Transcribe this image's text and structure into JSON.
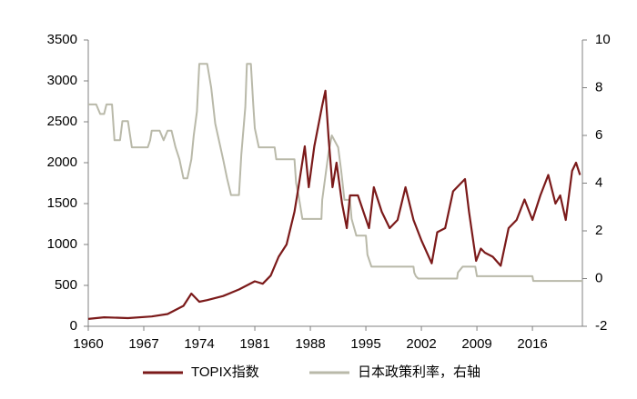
{
  "chart_data": {
    "type": "line",
    "legend": "bottom",
    "xlim": [
      1960,
      2022.3
    ],
    "xticks": [
      1960,
      1967,
      1974,
      1981,
      1988,
      1995,
      2002,
      2009,
      2016
    ],
    "ylim": [
      0,
      3500
    ],
    "yticks": [
      0,
      500,
      1000,
      1500,
      2000,
      2500,
      3000,
      3500
    ],
    "y2lim": [
      -2,
      10
    ],
    "y2ticks": [
      -2,
      0,
      2,
      4,
      6,
      8,
      10
    ],
    "series": [
      {
        "name": "TOPIX指数",
        "color": "#7b1a1a",
        "x": [
          1960,
          1962,
          1965,
          1968,
          1970,
          1972,
          1973,
          1974,
          1975,
          1977,
          1979,
          1981,
          1982,
          1983,
          1984,
          1985,
          1986,
          1986.5,
          1987.3,
          1987.8,
          1988.5,
          1989.5,
          1989.9,
          1990.3,
          1990.8,
          1991.3,
          1992,
          1992.6,
          1993,
          1994,
          1995.4,
          1996,
          1997,
          1998,
          1999,
          2000,
          2001,
          2002,
          2003.3,
          2004,
          2005,
          2006,
          2007,
          2007.5,
          2008,
          2008.9,
          2009.5,
          2010,
          2011,
          2012,
          2013,
          2014,
          2015,
          2016,
          2017,
          2018,
          2018.9,
          2019.5,
          2020.2,
          2021,
          2021.5,
          2022
        ],
        "values": [
          90,
          110,
          100,
          120,
          150,
          250,
          400,
          300,
          320,
          370,
          450,
          550,
          520,
          620,
          850,
          1000,
          1400,
          1700,
          2200,
          1700,
          2200,
          2700,
          2880,
          2300,
          1700,
          2000,
          1500,
          1200,
          1600,
          1600,
          1200,
          1700,
          1400,
          1200,
          1300,
          1700,
          1300,
          1050,
          770,
          1150,
          1200,
          1650,
          1750,
          1800,
          1400,
          800,
          950,
          900,
          850,
          740,
          1200,
          1300,
          1550,
          1300,
          1600,
          1850,
          1500,
          1600,
          1300,
          1900,
          2000,
          1850
        ]
      },
      {
        "name": "日本政策利率，右轴",
        "color": "#b9b9a9",
        "axis": "y2",
        "x": [
          1960,
          1961,
          1961.5,
          1962,
          1962.3,
          1963,
          1963.3,
          1964,
          1964.3,
          1965,
          1965.5,
          1967.5,
          1967.8,
          1968,
          1969,
          1969.5,
          1970,
          1970.5,
          1971,
          1971.5,
          1972,
          1972.5,
          1973,
          1973.3,
          1973.7,
          1974,
          1975,
          1975.5,
          1976,
          1977,
          1977.5,
          1978,
          1979,
          1979.3,
          1979.8,
          1980,
          1980.5,
          1980.8,
          1981,
          1981.5,
          1983.5,
          1983.7,
          1986,
          1986.2,
          1986.5,
          1987,
          1989.4,
          1989.5,
          1989.9,
          1990.3,
          1990.7,
          1991.5,
          1991.9,
          1992.3,
          1993,
          1993.2,
          1993.8,
          1995,
          1995.2,
          1995.7,
          2001,
          2001.1,
          2001.3,
          2001.6,
          2006.5,
          2006.6,
          2007.2,
          2008.8,
          2008.9,
          2009,
          2016,
          2016.1,
          2022.3
        ],
        "values": [
          7.3,
          7.3,
          6.9,
          6.9,
          7.3,
          7.3,
          5.8,
          5.8,
          6.6,
          6.6,
          5.5,
          5.5,
          5.8,
          6.2,
          6.2,
          5.8,
          6.2,
          6.2,
          5.5,
          5,
          4.2,
          4.2,
          5,
          6,
          7,
          9,
          9,
          8,
          6.5,
          5,
          4.2,
          3.5,
          3.5,
          5.2,
          7.2,
          9,
          9,
          7.3,
          6.3,
          5.5,
          5.5,
          5,
          5,
          4,
          3.5,
          2.5,
          2.5,
          3.3,
          4.3,
          5.3,
          6,
          5.5,
          4.5,
          3.3,
          3.3,
          2.5,
          1.8,
          1.8,
          1,
          0.5,
          0.5,
          0.25,
          0.1,
          0,
          0,
          0.25,
          0.5,
          0.5,
          0.3,
          0.1,
          0.1,
          -0.1,
          -0.1
        ]
      }
    ]
  }
}
